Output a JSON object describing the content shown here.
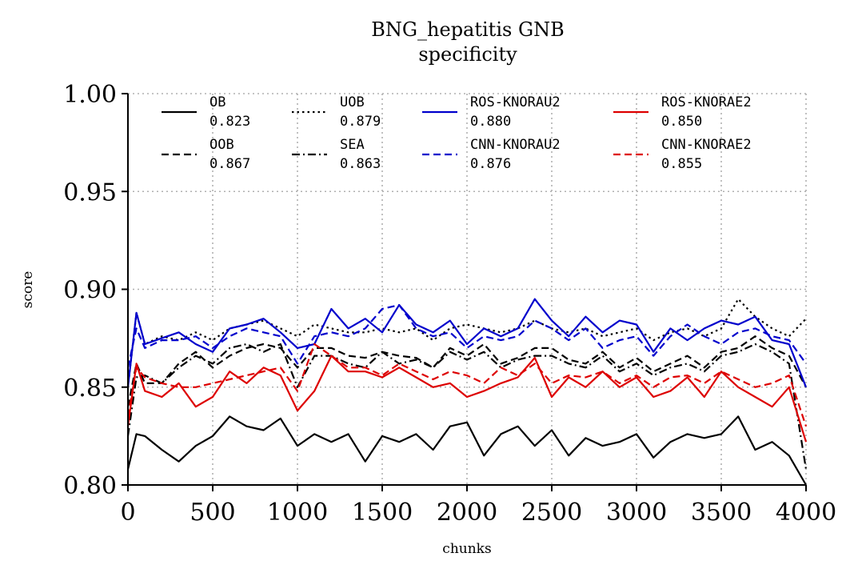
{
  "chart_data": {
    "type": "line",
    "title": "BNG_hepatitis GNB",
    "subtitle": "specificity",
    "xlabel": "chunks",
    "ylabel": "score",
    "xlim": [
      0,
      4000
    ],
    "ylim": [
      0.8,
      1.0
    ],
    "x_ticks": [
      0,
      500,
      1000,
      1500,
      2000,
      2500,
      3000,
      3500,
      4000
    ],
    "y_ticks": [
      0.8,
      0.85,
      0.9,
      0.95,
      1.0
    ],
    "y_tick_labels": [
      "0.80",
      "0.85",
      "0.90",
      "0.95",
      "1.00"
    ],
    "grid": true,
    "legend_position": "top",
    "legend_columns": 4,
    "x": [
      0,
      50,
      100,
      200,
      300,
      400,
      500,
      600,
      700,
      800,
      900,
      1000,
      1100,
      1200,
      1300,
      1400,
      1500,
      1600,
      1700,
      1800,
      1900,
      2000,
      2100,
      2200,
      2300,
      2400,
      2500,
      2600,
      2700,
      2800,
      2900,
      3000,
      3100,
      3200,
      3300,
      3400,
      3500,
      3600,
      3700,
      3800,
      3900,
      4000
    ],
    "series": [
      {
        "name": "OB",
        "score": "0.823",
        "color": "#000000",
        "dash": "solid",
        "values": [
          0.808,
          0.826,
          0.825,
          0.818,
          0.812,
          0.82,
          0.825,
          0.835,
          0.83,
          0.828,
          0.834,
          0.82,
          0.826,
          0.822,
          0.826,
          0.812,
          0.825,
          0.822,
          0.826,
          0.818,
          0.83,
          0.832,
          0.815,
          0.826,
          0.83,
          0.82,
          0.828,
          0.815,
          0.824,
          0.82,
          0.822,
          0.826,
          0.814,
          0.822,
          0.826,
          0.824,
          0.826,
          0.835,
          0.818,
          0.822,
          0.815,
          0.8
        ]
      },
      {
        "name": "OOB",
        "score": "0.867",
        "color": "#000000",
        "dash": "dashed",
        "values": [
          0.84,
          0.862,
          0.852,
          0.852,
          0.862,
          0.868,
          0.86,
          0.866,
          0.87,
          0.872,
          0.87,
          0.86,
          0.87,
          0.87,
          0.866,
          0.865,
          0.868,
          0.866,
          0.865,
          0.86,
          0.87,
          0.866,
          0.872,
          0.862,
          0.865,
          0.87,
          0.87,
          0.864,
          0.862,
          0.868,
          0.86,
          0.865,
          0.858,
          0.862,
          0.866,
          0.86,
          0.868,
          0.87,
          0.876,
          0.87,
          0.866,
          0.85
        ]
      },
      {
        "name": "UOB",
        "score": "0.879",
        "color": "#000000",
        "dash": "dotted",
        "values": [
          0.85,
          0.888,
          0.872,
          0.876,
          0.874,
          0.878,
          0.874,
          0.88,
          0.882,
          0.884,
          0.88,
          0.876,
          0.882,
          0.88,
          0.878,
          0.878,
          0.88,
          0.878,
          0.88,
          0.874,
          0.88,
          0.882,
          0.88,
          0.878,
          0.88,
          0.884,
          0.88,
          0.878,
          0.88,
          0.876,
          0.878,
          0.88,
          0.874,
          0.878,
          0.88,
          0.876,
          0.88,
          0.895,
          0.886,
          0.88,
          0.876,
          0.885
        ]
      },
      {
        "name": "SEA",
        "score": "0.863",
        "color": "#000000",
        "dash": "dashdot",
        "values": [
          0.825,
          0.855,
          0.856,
          0.852,
          0.86,
          0.866,
          0.862,
          0.87,
          0.872,
          0.868,
          0.872,
          0.85,
          0.866,
          0.866,
          0.862,
          0.86,
          0.868,
          0.862,
          0.864,
          0.86,
          0.868,
          0.864,
          0.868,
          0.86,
          0.864,
          0.866,
          0.866,
          0.862,
          0.86,
          0.866,
          0.858,
          0.862,
          0.856,
          0.86,
          0.862,
          0.858,
          0.866,
          0.868,
          0.872,
          0.868,
          0.862,
          0.808
        ]
      },
      {
        "name": "ROS-KNORAU2",
        "score": "0.880",
        "color": "#0000cc",
        "dash": "solid",
        "values": [
          0.85,
          0.888,
          0.872,
          0.875,
          0.878,
          0.872,
          0.868,
          0.88,
          0.882,
          0.885,
          0.878,
          0.87,
          0.872,
          0.89,
          0.88,
          0.885,
          0.878,
          0.892,
          0.882,
          0.878,
          0.884,
          0.872,
          0.88,
          0.876,
          0.88,
          0.895,
          0.884,
          0.876,
          0.886,
          0.878,
          0.884,
          0.882,
          0.868,
          0.88,
          0.874,
          0.88,
          0.884,
          0.882,
          0.886,
          0.874,
          0.872,
          0.85
        ]
      },
      {
        "name": "CNN-KNORAU2",
        "score": "0.876",
        "color": "#0000cc",
        "dash": "dashed",
        "values": [
          0.86,
          0.88,
          0.87,
          0.874,
          0.874,
          0.876,
          0.87,
          0.876,
          0.88,
          0.878,
          0.876,
          0.862,
          0.876,
          0.878,
          0.876,
          0.88,
          0.89,
          0.892,
          0.88,
          0.876,
          0.878,
          0.87,
          0.876,
          0.874,
          0.876,
          0.884,
          0.88,
          0.874,
          0.88,
          0.87,
          0.874,
          0.876,
          0.866,
          0.876,
          0.882,
          0.876,
          0.872,
          0.878,
          0.88,
          0.876,
          0.874,
          0.862
        ]
      },
      {
        "name": "ROS-KNORAE2",
        "score": "0.850",
        "color": "#dd0000",
        "dash": "solid",
        "values": [
          0.83,
          0.862,
          0.848,
          0.845,
          0.852,
          0.84,
          0.845,
          0.858,
          0.852,
          0.86,
          0.856,
          0.838,
          0.848,
          0.866,
          0.858,
          0.858,
          0.855,
          0.86,
          0.855,
          0.85,
          0.852,
          0.845,
          0.848,
          0.852,
          0.855,
          0.865,
          0.845,
          0.855,
          0.85,
          0.858,
          0.85,
          0.855,
          0.845,
          0.848,
          0.855,
          0.845,
          0.858,
          0.85,
          0.845,
          0.84,
          0.85,
          0.822
        ]
      },
      {
        "name": "CNN-KNORAE2",
        "score": "0.855",
        "color": "#dd0000",
        "dash": "dashed",
        "values": [
          0.835,
          0.86,
          0.855,
          0.852,
          0.85,
          0.85,
          0.852,
          0.854,
          0.856,
          0.858,
          0.86,
          0.848,
          0.872,
          0.866,
          0.86,
          0.86,
          0.856,
          0.862,
          0.858,
          0.854,
          0.858,
          0.856,
          0.852,
          0.86,
          0.856,
          0.862,
          0.852,
          0.856,
          0.855,
          0.858,
          0.852,
          0.856,
          0.85,
          0.855,
          0.856,
          0.852,
          0.858,
          0.854,
          0.85,
          0.852,
          0.856,
          0.83
        ]
      }
    ]
  }
}
